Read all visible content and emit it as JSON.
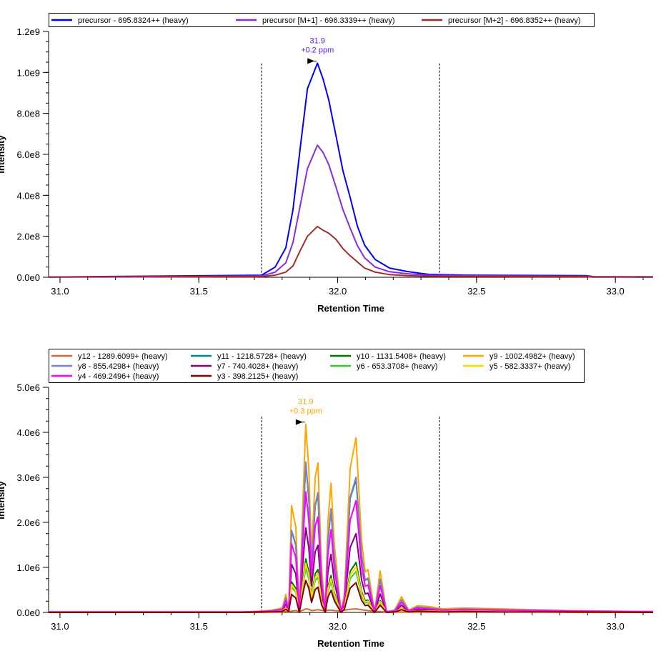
{
  "chart_data": [
    {
      "type": "line",
      "xlabel": "Retention Time",
      "ylabel": "Intensity",
      "xlim": [
        30.959,
        33.136
      ],
      "ylim": [
        0,
        1200000000.0
      ],
      "xticks": [
        {
          "v": 31.0,
          "label": "31.0"
        },
        {
          "v": 31.5,
          "label": "31.5"
        },
        {
          "v": 32.0,
          "label": "32.0"
        },
        {
          "v": 32.5,
          "label": "32.5"
        },
        {
          "v": 33.0,
          "label": "33.0"
        }
      ],
      "yticks": [
        {
          "v": 0,
          "label": "0.0e0"
        },
        {
          "v": 200000000.0,
          "label": "2.0e8"
        },
        {
          "v": 400000000.0,
          "label": "4.0e8"
        },
        {
          "v": 600000000.0,
          "label": "6.0e8"
        },
        {
          "v": 800000000.0,
          "label": "8.0e8"
        },
        {
          "v": 1000000000.0,
          "label": "1.0e9"
        },
        {
          "v": 1200000000.0,
          "label": "1.2e9"
        }
      ],
      "x_minor_step": 0.1,
      "y_minor_step": 50000000.0,
      "grid": false,
      "legend_position": "top",
      "integration_bounds": [
        31.726,
        32.367
      ],
      "annotation": {
        "x": 31.927,
        "y": 1045000000.0,
        "line1": "31.9",
        "line2": "+0.2 ppm",
        "color": "#5a1ef0"
      },
      "x": [
        30.959,
        31.726,
        31.775,
        31.813,
        31.839,
        31.865,
        31.891,
        31.927,
        31.947,
        31.968,
        31.994,
        32.019,
        32.045,
        32.071,
        32.097,
        32.135,
        32.187,
        32.251,
        32.328,
        32.457,
        32.894,
        32.92,
        33.136
      ],
      "series": [
        {
          "name": "precursor - 695.8324++ (heavy)",
          "color": "#0000ff",
          "values": [
            1000000.0,
            10000000.0,
            50000000.0,
            143000000.0,
            330000000.0,
            630000000.0,
            920000000.0,
            1045000000.0,
            970000000.0,
            865000000.0,
            690000000.0,
            520000000.0,
            390000000.0,
            250000000.0,
            157000000.0,
            87000000.0,
            45000000.0,
            28000000.0,
            14000000.0,
            10000000.0,
            8000000.0,
            3000000.0,
            2000000.0
          ]
        },
        {
          "name": "precursor [M+1] - 696.3339++ (heavy)",
          "color": "#8a2be2",
          "values": [
            1000000.0,
            6000000.0,
            25000000.0,
            70000000.0,
            170000000.0,
            350000000.0,
            530000000.0,
            645000000.0,
            610000000.0,
            550000000.0,
            440000000.0,
            330000000.0,
            240000000.0,
            155000000.0,
            95000000.0,
            50000000.0,
            27000000.0,
            17000000.0,
            10000000.0,
            7000000.0,
            5000000.0,
            2000000.0,
            1000000.0
          ]
        },
        {
          "name": "precursor [M+2] - 696.8352++ (heavy)",
          "color": "#a52a2a",
          "values": [
            1000000.0,
            3000000.0,
            10000000.0,
            25000000.0,
            55000000.0,
            130000000.0,
            200000000.0,
            248000000.0,
            230000000.0,
            215000000.0,
            185000000.0,
            140000000.0,
            105000000.0,
            75000000.0,
            45000000.0,
            25000000.0,
            13000000.0,
            8000000.0,
            5000000.0,
            4000000.0,
            3000000.0,
            1000000.0,
            1000000.0
          ]
        }
      ]
    },
    {
      "type": "line",
      "xlabel": "Retention Time",
      "ylabel": "Intensity",
      "xlim": [
        30.959,
        33.136
      ],
      "ylim": [
        0,
        5000000.0
      ],
      "xticks": [
        {
          "v": 31.0,
          "label": "31.0"
        },
        {
          "v": 31.5,
          "label": "31.5"
        },
        {
          "v": 32.0,
          "label": "32.0"
        },
        {
          "v": 32.5,
          "label": "32.5"
        },
        {
          "v": 33.0,
          "label": "33.0"
        }
      ],
      "yticks": [
        {
          "v": 0,
          "label": "0.0e0"
        },
        {
          "v": 1000000.0,
          "label": "1.0e6"
        },
        {
          "v": 2000000.0,
          "label": "2.0e6"
        },
        {
          "v": 3000000.0,
          "label": "3.0e6"
        },
        {
          "v": 4000000.0,
          "label": "4.0e6"
        },
        {
          "v": 5000000.0,
          "label": "5.0e6"
        }
      ],
      "x_minor_step": 0.1,
      "y_minor_step": 250000.0,
      "grid": false,
      "legend_position": "top",
      "integration_bounds": [
        31.726,
        32.367
      ],
      "annotation": {
        "x": 31.885,
        "y": 4180000.0,
        "line1": "31.9",
        "line2": "+0.3 ppm",
        "color": "#ffa500"
      },
      "x": [
        30.959,
        31.659,
        31.726,
        31.762,
        31.801,
        31.813,
        31.824,
        31.834,
        31.849,
        31.862,
        31.875,
        31.885,
        31.896,
        31.906,
        31.919,
        31.929,
        31.942,
        31.955,
        31.965,
        31.976,
        31.988,
        32.012,
        32.024,
        32.045,
        32.066,
        32.086,
        32.099,
        32.109,
        32.133,
        32.153,
        32.176,
        32.205,
        32.23,
        32.256,
        32.287,
        32.328,
        32.38,
        32.457,
        32.586,
        32.714,
        32.843,
        33.136
      ],
      "series": [
        {
          "name": "y12 - 1289.6099+ (heavy)",
          "color": "#d2692d",
          "values": [
            0,
            0,
            0,
            10000.0,
            10000.0,
            20000.0,
            10000.0,
            30000.0,
            40000.0,
            20000.0,
            50000.0,
            80000.0,
            70000.0,
            40000.0,
            50000.0,
            60000.0,
            50000.0,
            30000.0,
            50000.0,
            50000.0,
            40000.0,
            30000.0,
            50000.0,
            70000.0,
            80000.0,
            60000.0,
            50000.0,
            40000.0,
            20000.0,
            20000.0,
            10000.0,
            10000.0,
            10000.0,
            10000.0,
            10000.0,
            10000.0,
            10000.0,
            10000.0,
            10000.0,
            10000.0,
            0,
            0
          ]
        },
        {
          "name": "y11 - 1218.5728+ (heavy)",
          "color": "#008b8b",
          "values": [
            10000.0,
            10000.0,
            20000.0,
            40000.0,
            80000.0,
            320000.0,
            80000.0,
            1800000.0,
            1500000.0,
            20000.0,
            1980000.0,
            3300000.0,
            2530000.0,
            1030000.0,
            2370000.0,
            2620000.0,
            790000.0,
            20000.0,
            1580000.0,
            2270000.0,
            1190000.0,
            20000.0,
            320000.0,
            2530000.0,
            2950000.0,
            1260000.0,
            710000.0,
            750000.0,
            20000.0,
            730000.0,
            20000.0,
            40000.0,
            280000.0,
            40000.0,
            120000.0,
            100000.0,
            60000.0,
            80000.0,
            60000.0,
            50000.0,
            30000.0,
            20000.0
          ]
        },
        {
          "name": "y10 - 1131.5408+ (heavy)",
          "color": "#007800",
          "values": [
            0,
            0,
            10000.0,
            10000.0,
            30000.0,
            110000.0,
            30000.0,
            680000.0,
            540000.0,
            10000.0,
            710000.0,
            1190000.0,
            910000.0,
            370000.0,
            860000.0,
            950000.0,
            290000.0,
            10000.0,
            570000.0,
            820000.0,
            430000.0,
            10000.0,
            110000.0,
            910000.0,
            1110000.0,
            460000.0,
            260000.0,
            270000.0,
            10000.0,
            260000.0,
            10000.0,
            10000.0,
            100000.0,
            10000.0,
            40000.0,
            40000.0,
            20000.0,
            30000.0,
            20000.0,
            20000.0,
            10000.0,
            0
          ]
        },
        {
          "name": "y9 - 1002.4982+ (heavy)",
          "color": "#ffa500",
          "values": [
            10000.0,
            10000.0,
            30000.0,
            50000.0,
            100000.0,
            400000.0,
            100000.0,
            2370000.0,
            1900000.0,
            20000.0,
            2500000.0,
            4180000.0,
            3200000.0,
            1300000.0,
            3000000.0,
            3320000.0,
            1000000.0,
            20000.0,
            2000000.0,
            2870000.0,
            1500000.0,
            20000.0,
            400000.0,
            3200000.0,
            3880000.0,
            1600000.0,
            900000.0,
            950000.0,
            20000.0,
            920000.0,
            20000.0,
            50000.0,
            350000.0,
            50000.0,
            150000.0,
            130000.0,
            80000.0,
            100000.0,
            80000.0,
            60000.0,
            40000.0,
            20000.0
          ]
        },
        {
          "name": "y8 - 855.4298+ (heavy)",
          "color": "#7b7fc8",
          "values": [
            10000.0,
            10000.0,
            20000.0,
            40000.0,
            80000.0,
            320000.0,
            80000.0,
            1820000.0,
            1520000.0,
            20000.0,
            2000000.0,
            3340000.0,
            2560000.0,
            1040000.0,
            2400000.0,
            2660000.0,
            800000.0,
            20000.0,
            1600000.0,
            2300000.0,
            1200000.0,
            20000.0,
            320000.0,
            2560000.0,
            3000000.0,
            1280000.0,
            720000.0,
            760000.0,
            20000.0,
            740000.0,
            20000.0,
            40000.0,
            280000.0,
            40000.0,
            120000.0,
            100000.0,
            60000.0,
            80000.0,
            60000.0,
            50000.0,
            30000.0,
            20000.0
          ]
        },
        {
          "name": "y7 - 740.4028+ (heavy)",
          "color": "#800080",
          "values": [
            0,
            0,
            10000.0,
            20000.0,
            50000.0,
            180000.0,
            50000.0,
            1070000.0,
            860000.0,
            10000.0,
            1130000.0,
            1880000.0,
            1440000.0,
            590000.0,
            1350000.0,
            1490000.0,
            450000.0,
            10000.0,
            900000.0,
            1290000.0,
            680000.0,
            10000.0,
            180000.0,
            1440000.0,
            1750000.0,
            720000.0,
            410000.0,
            430000.0,
            10000.0,
            410000.0,
            10000.0,
            20000.0,
            160000.0,
            20000.0,
            70000.0,
            60000.0,
            40000.0,
            50000.0,
            40000.0,
            30000.0,
            20000.0,
            10000.0
          ]
        },
        {
          "name": "y6 - 653.3708+ (heavy)",
          "color": "#32cd32",
          "values": [
            0,
            0,
            10000.0,
            10000.0,
            20000.0,
            90000.0,
            20000.0,
            560000.0,
            450000.0,
            0,
            590000.0,
            980000.0,
            750000.0,
            310000.0,
            710000.0,
            780000.0,
            240000.0,
            0,
            470000.0,
            670000.0,
            350000.0,
            0,
            90000.0,
            750000.0,
            910000.0,
            380000.0,
            210000.0,
            220000.0,
            0,
            220000.0,
            0,
            10000.0,
            80000.0,
            10000.0,
            40000.0,
            30000.0,
            20000.0,
            20000.0,
            20000.0,
            10000.0,
            10000.0,
            0
          ]
        },
        {
          "name": "y5 - 582.3337+ (heavy)",
          "color": "#ffd700",
          "values": [
            0,
            0,
            10000.0,
            10000.0,
            30000.0,
            100000.0,
            30000.0,
            620000.0,
            490000.0,
            10000.0,
            650000.0,
            1090000.0,
            830000.0,
            340000.0,
            780000.0,
            860000.0,
            260000.0,
            10000.0,
            520000.0,
            750000.0,
            390000.0,
            10000.0,
            100000.0,
            830000.0,
            1010000.0,
            420000.0,
            230000.0,
            250000.0,
            10000.0,
            240000.0,
            10000.0,
            10000.0,
            90000.0,
            10000.0,
            40000.0,
            30000.0,
            20000.0,
            30000.0,
            20000.0,
            20000.0,
            10000.0,
            0
          ]
        },
        {
          "name": "y4 - 469.2496+ (heavy)",
          "color": "#ff00ff",
          "values": [
            10000.0,
            10000.0,
            20000.0,
            30000.0,
            60000.0,
            260000.0,
            60000.0,
            1520000.0,
            1220000.0,
            10000.0,
            1600000.0,
            2680000.0,
            2050000.0,
            830000.0,
            1920000.0,
            2120000.0,
            640000.0,
            10000.0,
            1280000.0,
            1840000.0,
            960000.0,
            10000.0,
            260000.0,
            2050000.0,
            2480000.0,
            1020000.0,
            580000.0,
            610000.0,
            10000.0,
            590000.0,
            10000.0,
            30000.0,
            220000.0,
            30000.0,
            100000.0,
            80000.0,
            50000.0,
            60000.0,
            50000.0,
            40000.0,
            30000.0,
            10000.0
          ]
        },
        {
          "name": "y3 - 398.2125+ (heavy)",
          "color": "#800000",
          "values": [
            0,
            0,
            10000.0,
            10000.0,
            20000.0,
            70000.0,
            20000.0,
            400000.0,
            320000.0,
            0,
            430000.0,
            710000.0,
            540000.0,
            220000.0,
            510000.0,
            560000.0,
            170000.0,
            0,
            340000.0,
            490000.0,
            260000.0,
            0,
            70000.0,
            540000.0,
            660000.0,
            270000.0,
            150000.0,
            160000.0,
            0,
            160000.0,
            0,
            10000.0,
            60000.0,
            10000.0,
            30000.0,
            20000.0,
            10000.0,
            20000.0,
            10000.0,
            10000.0,
            10000.0,
            0
          ]
        }
      ]
    }
  ]
}
